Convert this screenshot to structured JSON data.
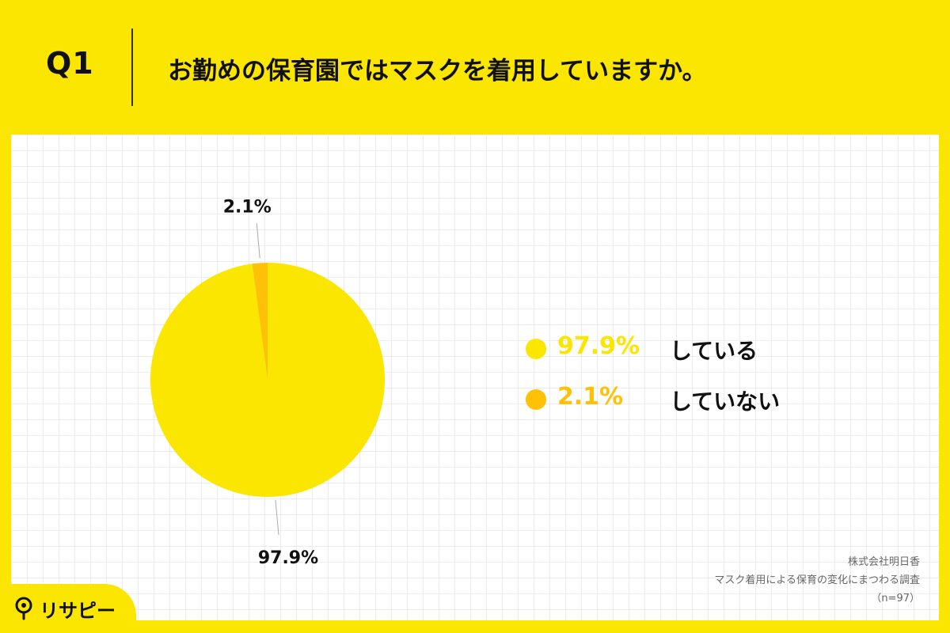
{
  "header": {
    "q_label": "Q1",
    "title": "お勤めの保育園ではマスクを着用していますか。"
  },
  "chart_data": {
    "type": "pie",
    "title": "お勤めの保育園ではマスクを着用していますか。",
    "slices": [
      {
        "label": "している",
        "value": 97.9,
        "display": "97.9%",
        "color": "#FAE600"
      },
      {
        "label": "していない",
        "value": 2.1,
        "display": "2.1%",
        "color": "#FFC107"
      }
    ],
    "legend_position": "right"
  },
  "legend": {
    "items": [
      {
        "pct": "97.9%",
        "label": "している",
        "color": "#FAE600"
      },
      {
        "pct": "2.1%",
        "label": "していない",
        "color": "#FFC107"
      }
    ]
  },
  "source": {
    "company": "株式会社明日香",
    "survey": "マスク着用による保育の変化にまつわる調査",
    "sample": "（n=97）"
  },
  "logo": {
    "text": "リサピー"
  },
  "colors": {
    "background": "#FAE600",
    "accent": "#FFC107",
    "text": "#111111"
  }
}
